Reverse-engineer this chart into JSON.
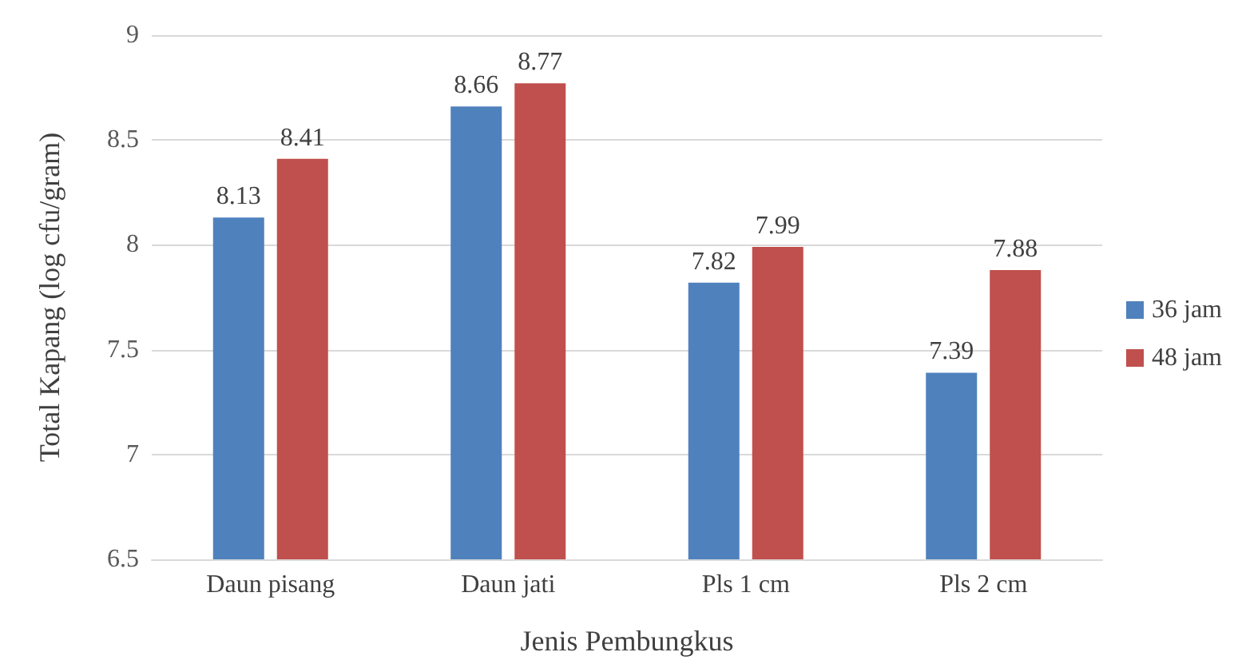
{
  "chart_data": {
    "type": "bar",
    "xlabel": "Jenis Pembungkus",
    "ylabel": "Total Kapang (log cfu/gram)",
    "categories": [
      "Daun pisang",
      "Daun jati",
      "Pls 1 cm",
      "Pls 2 cm"
    ],
    "series": [
      {
        "name": "36 jam",
        "color": "#4f81bd",
        "values": [
          8.13,
          8.66,
          7.82,
          7.39
        ]
      },
      {
        "name": "48 jam",
        "color": "#c0504d",
        "values": [
          8.41,
          8.77,
          7.99,
          7.88
        ]
      }
    ],
    "ylim": [
      6.5,
      9
    ],
    "yticks": [
      6.5,
      7,
      7.5,
      8,
      8.5,
      9
    ],
    "grid": "y",
    "legend": "right",
    "data_labels": true
  }
}
